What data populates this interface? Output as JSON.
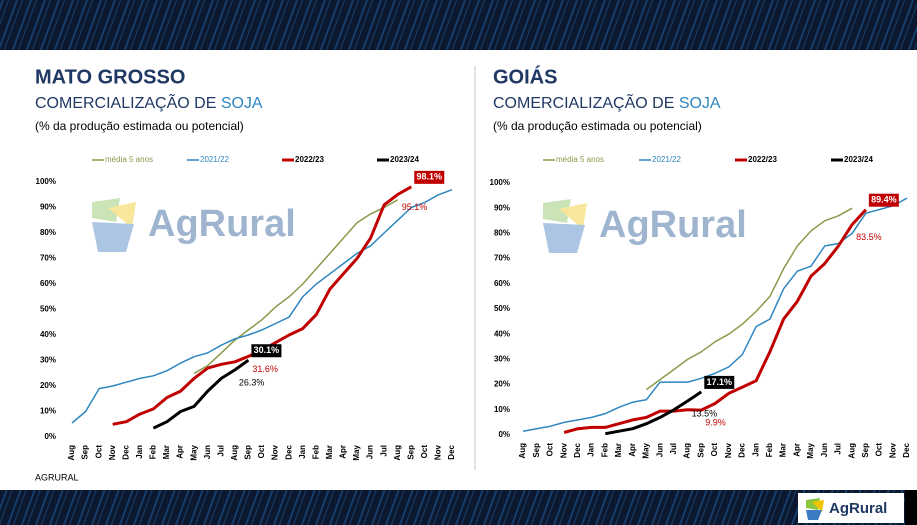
{
  "chart_data": [
    {
      "type": "line",
      "title": "MATO GROSSO",
      "subtitle": {
        "text": "COMERCIALIZAÇÃO DE",
        "highlight": "SOJA"
      },
      "note": "(% da produção estimada ou potencial)",
      "watermark": "AgRural",
      "categories": [
        "Aug",
        "Sep",
        "Oct",
        "Nov",
        "Dec",
        "Jan",
        "Feb",
        "Mar",
        "Apr",
        "May",
        "Jun",
        "Jul",
        "Aug",
        "Sep",
        "Oct",
        "Nov",
        "Dec",
        "Jan",
        "Feb",
        "Mar",
        "Apr",
        "May",
        "Jun",
        "Jul",
        "Aug",
        "Sep",
        "Oct",
        "Nov",
        "Dec"
      ],
      "ylim": [
        0,
        100
      ],
      "yticks": [
        {
          "value": 0,
          "label": "0%"
        },
        {
          "value": 10,
          "label": "10%"
        },
        {
          "value": 20,
          "label": "20%"
        },
        {
          "value": 30,
          "label": "30%"
        },
        {
          "value": 40,
          "label": "40%"
        },
        {
          "value": 50,
          "label": "50%"
        },
        {
          "value": 60,
          "label": "60%"
        },
        {
          "value": 70,
          "label": "70%"
        },
        {
          "value": 80,
          "label": "80%"
        },
        {
          "value": 90,
          "label": "90%"
        },
        {
          "value": 100,
          "label": "100%"
        }
      ],
      "series": [
        {
          "name": "média 5 anos",
          "color": "#8a9a4b",
          "line_width": 1.5,
          "values": [
            null,
            null,
            null,
            null,
            null,
            null,
            null,
            null,
            null,
            25,
            28,
            33,
            38,
            42,
            46,
            51,
            55,
            60,
            66,
            72,
            78,
            84,
            87.5,
            90,
            93,
            null,
            null,
            null,
            null
          ]
        },
        {
          "name": "2021/22",
          "color": "#2e86c1",
          "line_width": 1.5,
          "values": [
            5.5,
            10,
            19,
            20,
            21.5,
            23,
            24,
            26,
            29,
            31.5,
            33,
            36,
            38.5,
            40,
            42,
            44.5,
            47,
            55,
            60,
            64,
            68,
            72,
            75,
            80,
            85,
            90,
            92,
            95,
            97
          ]
        },
        {
          "name": "2022/23",
          "color": "#c00000",
          "line_width": 3,
          "values": [
            null,
            null,
            null,
            5,
            6,
            9,
            11,
            15.5,
            18,
            23,
            27,
            28.5,
            29.5,
            31.6,
            34,
            37,
            40,
            42.5,
            48,
            58,
            64,
            70,
            78,
            91,
            95.1,
            98.1,
            null,
            null,
            null
          ],
          "value_labels": [
            null,
            null,
            null,
            null,
            null,
            null,
            null,
            null,
            null,
            null,
            null,
            null,
            null,
            "31.6%",
            null,
            null,
            null,
            null,
            null,
            null,
            null,
            null,
            null,
            null,
            "95.1%",
            "98.1%",
            null,
            null,
            null
          ]
        },
        {
          "name": "2023/24",
          "color": "#000000",
          "line_width": 3,
          "values": [
            null,
            null,
            null,
            null,
            null,
            null,
            3.5,
            6,
            10,
            12,
            18,
            23,
            26.3,
            30.1,
            null,
            null,
            null,
            null,
            null,
            null,
            null,
            null,
            null,
            null,
            null,
            null,
            null,
            null,
            null
          ],
          "value_labels": [
            null,
            null,
            null,
            null,
            null,
            null,
            null,
            null,
            null,
            null,
            null,
            null,
            "26.3%",
            "30.1%",
            null,
            null,
            null,
            null,
            null,
            null,
            null,
            null,
            null,
            null,
            null,
            null,
            null,
            null,
            null
          ]
        }
      ]
    },
    {
      "type": "line",
      "title": "GOIÁS",
      "subtitle": {
        "text": "COMERCIALIZAÇÃO DE",
        "highlight": "SOJA"
      },
      "note": "(% da produção estimada ou potencial)",
      "watermark": "AgRural",
      "categories": [
        "Aug",
        "Sep",
        "Oct",
        "Nov",
        "Dec",
        "Jan",
        "Feb",
        "Mar",
        "Apr",
        "May",
        "Jun",
        "Jul",
        "Aug",
        "Sep",
        "Oct",
        "Nov",
        "Dec",
        "Jan",
        "Feb",
        "Mar",
        "Apr",
        "May",
        "Jun",
        "Jul",
        "Aug",
        "Sep",
        "Oct",
        "Nov",
        "Dec"
      ],
      "ylim": [
        0,
        100
      ],
      "yticks": [
        {
          "value": 0,
          "label": "0%"
        },
        {
          "value": 10,
          "label": "10%"
        },
        {
          "value": 20,
          "label": "20%"
        },
        {
          "value": 30,
          "label": "30%"
        },
        {
          "value": 40,
          "label": "40%"
        },
        {
          "value": 50,
          "label": "50%"
        },
        {
          "value": 60,
          "label": "60%"
        },
        {
          "value": 70,
          "label": "70%"
        },
        {
          "value": 80,
          "label": "80%"
        },
        {
          "value": 90,
          "label": "90%"
        },
        {
          "value": 100,
          "label": "100%"
        }
      ],
      "series": [
        {
          "name": "média 5 anos",
          "color": "#8a9a4b",
          "line_width": 1.5,
          "values": [
            null,
            null,
            null,
            null,
            null,
            null,
            null,
            null,
            null,
            18,
            22,
            26,
            30,
            33,
            37,
            40,
            44,
            49,
            55,
            66,
            75,
            81,
            85,
            87,
            90,
            null,
            null,
            null,
            null
          ]
        },
        {
          "name": "2021/22",
          "color": "#2e86c1",
          "line_width": 1.5,
          "values": [
            1.5,
            2.5,
            3.5,
            5,
            6,
            7,
            8.5,
            11,
            13,
            14,
            21,
            21,
            21,
            22.5,
            24.5,
            27,
            32,
            43,
            46,
            58,
            65,
            67,
            75,
            76,
            80,
            88,
            89.5,
            91,
            94
          ]
        },
        {
          "name": "2022/23",
          "color": "#c00000",
          "line_width": 3,
          "values": [
            null,
            null,
            null,
            1,
            2.5,
            3,
            3,
            4.5,
            6,
            7,
            9.5,
            9.5,
            10,
            9.9,
            12.5,
            16.5,
            19,
            21.5,
            33,
            46,
            53,
            63,
            68,
            75,
            83.5,
            89.4,
            null,
            null,
            null
          ],
          "value_labels": [
            null,
            null,
            null,
            null,
            null,
            null,
            null,
            null,
            null,
            null,
            null,
            null,
            null,
            "9.9%",
            null,
            null,
            null,
            null,
            null,
            null,
            null,
            null,
            null,
            null,
            "83.5%",
            "89.4%",
            null,
            null,
            null
          ]
        },
        {
          "name": "2023/24",
          "color": "#000000",
          "line_width": 3,
          "values": [
            null,
            null,
            null,
            null,
            null,
            null,
            0.5,
            1.5,
            2.5,
            4.5,
            7,
            10,
            13.5,
            17.1,
            null,
            null,
            null,
            null,
            null,
            null,
            null,
            null,
            null,
            null,
            null,
            null,
            null,
            null,
            null
          ],
          "value_labels": [
            null,
            null,
            null,
            null,
            null,
            null,
            null,
            null,
            null,
            null,
            null,
            null,
            "13.5%",
            "17.1%",
            null,
            null,
            null,
            null,
            null,
            null,
            null,
            null,
            null,
            null,
            null,
            null,
            null,
            null,
            null
          ]
        }
      ]
    }
  ],
  "source": "AGRURAL",
  "logo": "AgRural"
}
